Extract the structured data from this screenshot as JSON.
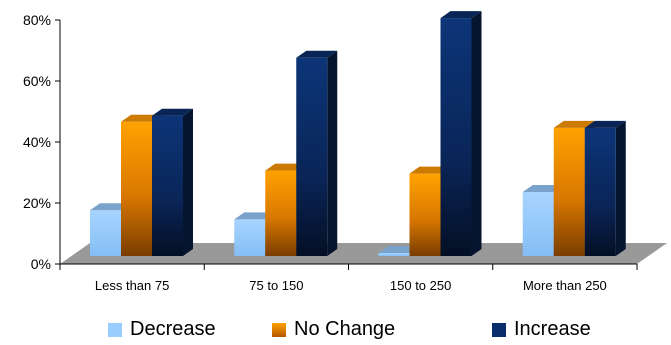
{
  "chart_data": {
    "type": "bar",
    "categories": [
      "Less than 75",
      "75 to 150",
      "150 to 250",
      "More than 250"
    ],
    "series": [
      {
        "name": "Decrease",
        "values": [
          15,
          12,
          1,
          21
        ],
        "color": "#99CCFF"
      },
      {
        "name": "No Change",
        "values": [
          44,
          28,
          27,
          42
        ],
        "color": "#FF9900"
      },
      {
        "name": "Increase",
        "values": [
          46,
          65,
          78,
          42
        ],
        "color": "#0A2E6B"
      }
    ],
    "yticks": [
      "0%",
      "20%",
      "40%",
      "60%",
      "80%"
    ],
    "ylim": [
      0,
      80
    ],
    "legend": "bottom",
    "style": "3d-clustered-column"
  }
}
